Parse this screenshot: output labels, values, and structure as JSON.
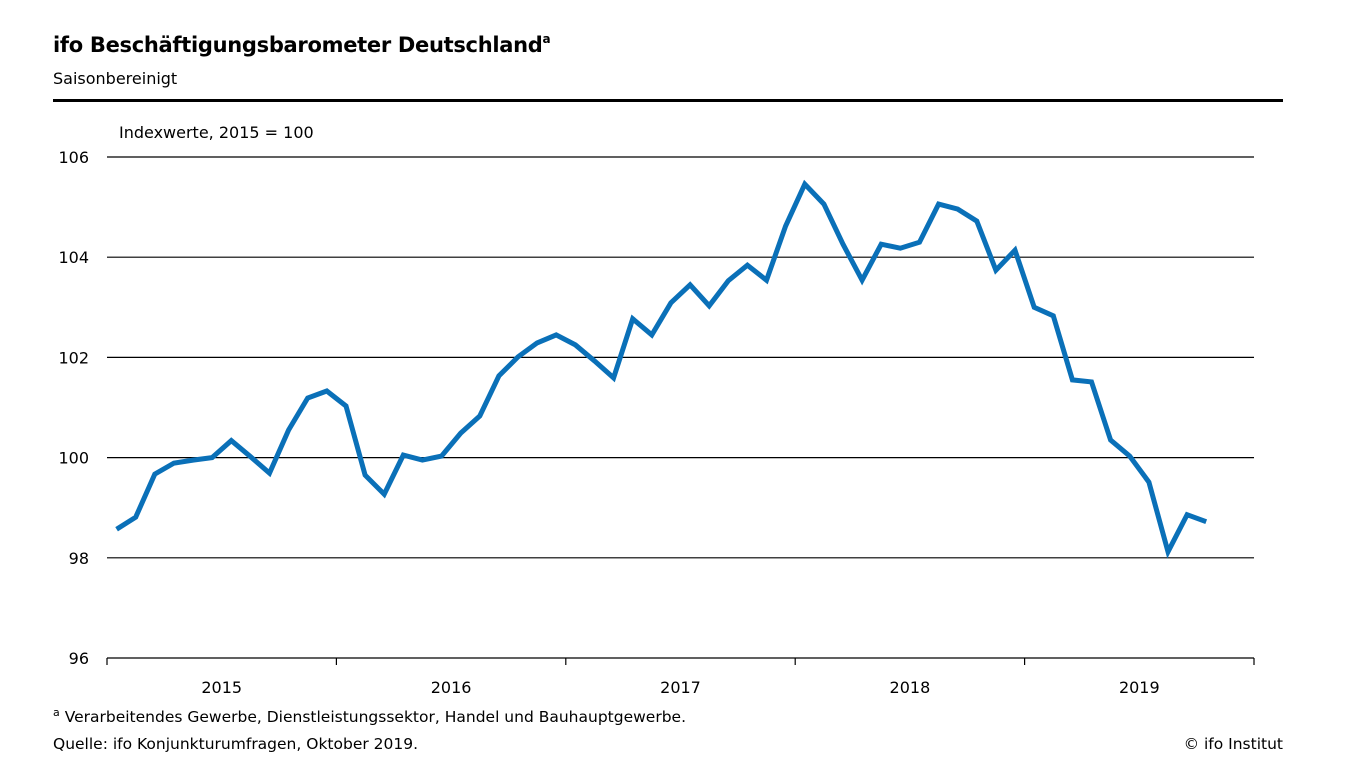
{
  "header": {
    "title": "ifo Beschäftigungsbarometer Deutschland",
    "title_footnote_mark": "a",
    "subtitle": "Saisonbereinigt"
  },
  "footer": {
    "footnote_mark": "a",
    "footnote": "Verarbeitendes Gewerbe, Dienstleistungssektor, Handel und Bauhauptgewerbe.",
    "source": "Quelle: ifo Konjunkturumfragen, Oktober 2019.",
    "copyright": "© ifo Institut"
  },
  "chart_data": {
    "type": "line",
    "ylabel": "Indexwerte, 2015 = 100",
    "ylim": [
      96,
      106
    ],
    "yticks": [
      "96",
      "98",
      "100",
      "102",
      "104",
      "106"
    ],
    "xticks": [
      "2015",
      "2016",
      "2017",
      "2018",
      "2019"
    ],
    "x_start": "2015-01",
    "x_end": "2019-10",
    "frequency": "monthly",
    "grid": true,
    "line_color": "#0a70b8",
    "values": [
      98.57,
      98.81,
      99.67,
      99.89,
      99.95,
      100.0,
      100.34,
      100.02,
      99.69,
      100.55,
      101.19,
      101.33,
      101.03,
      99.65,
      99.27,
      100.05,
      99.95,
      100.03,
      100.49,
      100.83,
      101.63,
      102.01,
      102.29,
      102.45,
      102.25,
      101.93,
      101.59,
      102.77,
      102.45,
      103.09,
      103.45,
      103.03,
      103.53,
      103.84,
      103.54,
      104.62,
      105.46,
      105.06,
      104.26,
      103.54,
      104.26,
      104.18,
      104.3,
      105.06,
      104.96,
      104.72,
      103.74,
      104.14,
      103.0,
      102.83,
      101.55,
      101.51,
      100.35,
      100.03,
      99.51,
      98.12,
      98.86,
      98.72
    ]
  }
}
